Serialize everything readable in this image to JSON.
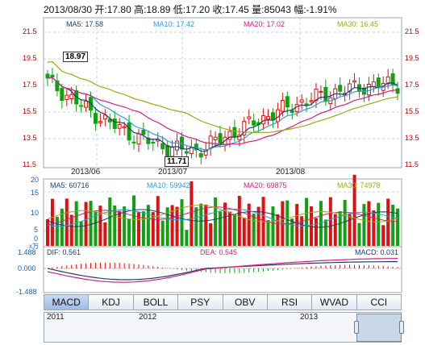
{
  "header": {
    "text": "2013/08/30 开:17.80  高:18.89  低:17.20  收:17.45  量:85043  幅:-1.91%"
  },
  "main": {
    "ma_legend": [
      {
        "label": "MA5: 17.58",
        "color": "#1f3b73"
      },
      {
        "label": "MA10: 17.42",
        "color": "#2aa0d8"
      },
      {
        "label": "MA20: 17.02",
        "color": "#d6207a"
      },
      {
        "label": "MA30: 16.45",
        "color": "#9aaa16"
      }
    ],
    "price_ticks": [
      "21.5",
      "19.5",
      "17.5",
      "15.5",
      "13.5",
      "11.5"
    ],
    "date_ticks": [
      "2013/06",
      "2013/07",
      "2013/08"
    ],
    "high_tag": "18.97",
    "low_tag": "11.71"
  },
  "volume": {
    "ma_legend": [
      {
        "label": "MA5: 60716",
        "color": "#1f3b73"
      },
      {
        "label": "MA10: 59942",
        "color": "#2aa0d8"
      },
      {
        "label": "MA20: 69875",
        "color": "#d6207a"
      },
      {
        "label": "MA30: 74978",
        "color": "#9aaa16"
      }
    ],
    "ticks": [
      "20",
      "15",
      "10",
      "5",
      "0"
    ],
    "unit": "x万"
  },
  "macd": {
    "dif_label": "DIF: 0.561",
    "dea_label": "DEA: 0.545",
    "macd_label": "MACD: 0.031",
    "ticks": [
      "1.488",
      "0.000",
      "-1.488"
    ]
  },
  "tabs": [
    "MACD",
    "KDJ",
    "BOLL",
    "PSY",
    "OBV",
    "RSI",
    "WVAD",
    "CCI"
  ],
  "active_tab": "MACD",
  "navigator": {
    "years": [
      "2011",
      "2012",
      "2013"
    ]
  },
  "colors": {
    "up": "#e01010",
    "down": "#10a010",
    "ma5": "#1f3b73",
    "ma10": "#2aa0d8",
    "ma20": "#d6207a",
    "ma30": "#9aaa16"
  }
}
